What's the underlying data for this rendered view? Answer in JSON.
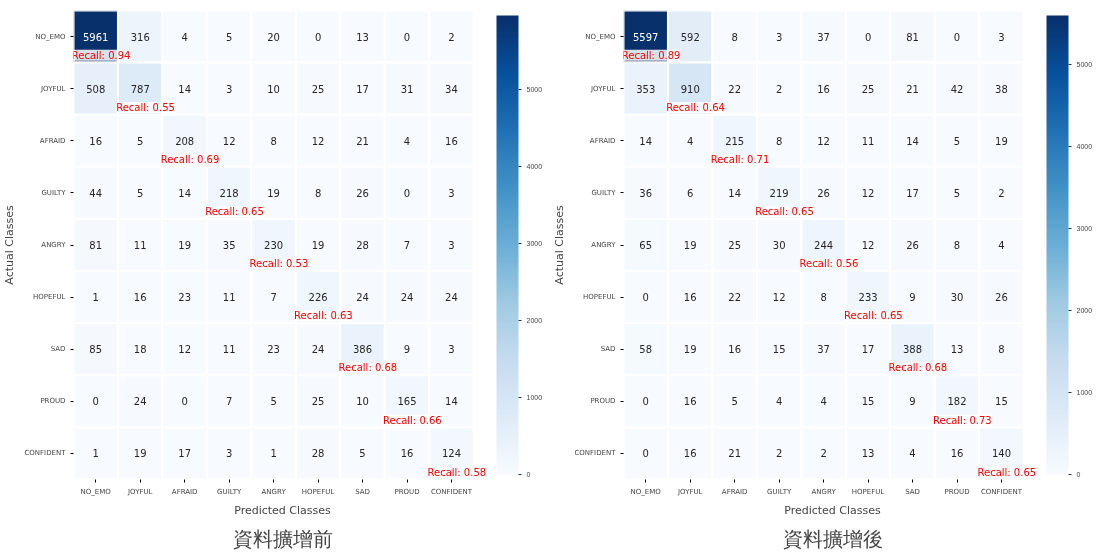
{
  "chart_data": [
    {
      "type": "heatmap",
      "title": "資料擴增前",
      "xlabel": "Predicted Classes",
      "ylabel": "Actual Classes",
      "categories": [
        "NO_EMO",
        "JOYFUL",
        "AFRAID",
        "GUILTY",
        "ANGRY",
        "HOPEFUL",
        "SAD",
        "PROUD",
        "CONFIDENT"
      ],
      "y_categories": [
        "NO_EMO",
        "JOYFUL",
        "AFRAID",
        "GUILTY",
        "ANGRY",
        "HOPEFUL",
        "SAD",
        "PROUD",
        "CONFIDENT"
      ],
      "cells": [
        [
          5961,
          316,
          4,
          5,
          20,
          0,
          13,
          0,
          2
        ],
        [
          508,
          787,
          14,
          3,
          10,
          25,
          17,
          31,
          34
        ],
        [
          16,
          5,
          208,
          12,
          8,
          12,
          21,
          4,
          16
        ],
        [
          44,
          5,
          14,
          218,
          19,
          8,
          26,
          0,
          3
        ],
        [
          81,
          11,
          19,
          35,
          230,
          19,
          28,
          7,
          3
        ],
        [
          1,
          16,
          23,
          11,
          7,
          226,
          24,
          24,
          24
        ],
        [
          85,
          18,
          12,
          11,
          23,
          24,
          386,
          9,
          3
        ],
        [
          0,
          24,
          0,
          7,
          5,
          25,
          10,
          165,
          14
        ],
        [
          1,
          19,
          17,
          3,
          1,
          28,
          5,
          16,
          124
        ]
      ],
      "clim": [
        0,
        5961
      ],
      "cticks": [
        0,
        1000,
        2000,
        3000,
        4000,
        5000
      ],
      "data_labels": true,
      "annotations": [
        "Recall: 0.94",
        "Recall: 0.55",
        "Recall: 0.69",
        "Recall: 0.65",
        "Recall: 0.53",
        "Recall: 0.63",
        "Recall: 0.68",
        "Recall: 0.66",
        "Recall: 0.58"
      ]
    },
    {
      "type": "heatmap",
      "title": "資料擴增後",
      "xlabel": "Predicted Classes",
      "ylabel": "Actual Classes",
      "categories": [
        "NO_EMO",
        "JOYFUL",
        "AFRAID",
        "GUILTY",
        "ANGRY",
        "HOPEFUL",
        "SAD",
        "PROUD",
        "CONFIDENT"
      ],
      "y_categories": [
        "NO_EMO",
        "JOYFUL",
        "AFRAID",
        "GUILTY",
        "ANGRY",
        "HOPEFUL",
        "SAD",
        "PROUD",
        "CONFIDENT"
      ],
      "cells": [
        [
          5597,
          592,
          8,
          3,
          37,
          0,
          81,
          0,
          3
        ],
        [
          353,
          910,
          22,
          2,
          16,
          25,
          21,
          42,
          38
        ],
        [
          14,
          4,
          215,
          8,
          12,
          11,
          14,
          5,
          19
        ],
        [
          36,
          6,
          14,
          219,
          26,
          12,
          17,
          5,
          2
        ],
        [
          65,
          19,
          25,
          30,
          244,
          12,
          26,
          8,
          4
        ],
        [
          0,
          16,
          22,
          12,
          8,
          233,
          9,
          30,
          26
        ],
        [
          58,
          19,
          16,
          15,
          37,
          17,
          388,
          13,
          8
        ],
        [
          0,
          16,
          5,
          4,
          4,
          15,
          9,
          182,
          15
        ],
        [
          0,
          16,
          21,
          2,
          2,
          13,
          4,
          16,
          140
        ]
      ],
      "clim": [
        0,
        5597
      ],
      "cticks": [
        0,
        1000,
        2000,
        3000,
        4000,
        5000
      ],
      "data_labels": true,
      "annotations": [
        "Recall: 0.89",
        "Recall: 0.64",
        "Recall: 0.71",
        "Recall: 0.65",
        "Recall: 0.56",
        "Recall: 0.65",
        "Recall: 0.68",
        "Recall: 0.73",
        "Recall: 0.65"
      ]
    }
  ]
}
